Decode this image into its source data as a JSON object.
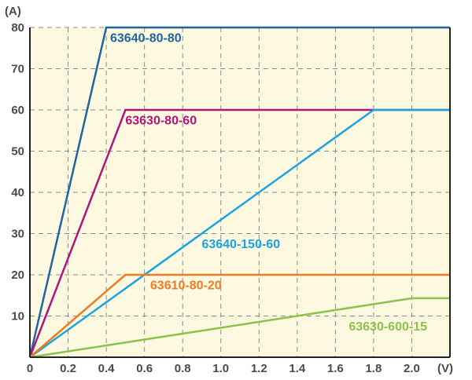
{
  "chart_data": {
    "type": "line",
    "xlabel": "(V)",
    "ylabel": "(A)",
    "xlim": [
      0,
      2.2
    ],
    "ylim": [
      0,
      80
    ],
    "x_ticks": [
      "0",
      "0.2",
      "0.4",
      "0.6",
      "0.8",
      "1.0",
      "1.2",
      "1.4",
      "1.6",
      "1.8",
      "2.0"
    ],
    "x_tick_values": [
      0,
      0.2,
      0.4,
      0.6,
      0.8,
      1.0,
      1.2,
      1.4,
      1.6,
      1.8,
      2.0
    ],
    "y_ticks": [
      "10",
      "20",
      "30",
      "40",
      "50",
      "60",
      "70",
      "80"
    ],
    "y_tick_values": [
      10,
      20,
      30,
      40,
      50,
      60,
      70,
      80
    ],
    "grid": true,
    "background_color": "#fdf9e1",
    "series": [
      {
        "name": "63640-80-80",
        "color": "#1f64a3",
        "label_x": 0.42,
        "label_y": 76.5,
        "points": [
          [
            0,
            0
          ],
          [
            0.4,
            80
          ],
          [
            2.2,
            80
          ]
        ]
      },
      {
        "name": "63630-80-60",
        "color": "#b0157a",
        "label_x": 0.5,
        "label_y": 56.5,
        "points": [
          [
            0,
            0
          ],
          [
            0.5,
            60
          ],
          [
            2.2,
            60
          ]
        ]
      },
      {
        "name": "63640-150-60",
        "color": "#1aa3df",
        "label_x": 0.9,
        "label_y": 26.5,
        "points": [
          [
            0,
            0
          ],
          [
            1.8,
            60
          ],
          [
            2.2,
            60
          ]
        ]
      },
      {
        "name": "63610-80-20",
        "color": "#ee7a23",
        "label_x": 0.63,
        "label_y": 16.5,
        "points": [
          [
            0,
            0
          ],
          [
            0.5,
            20
          ],
          [
            2.2,
            20
          ]
        ]
      },
      {
        "name": "63630-600-15",
        "color": "#8bc34a",
        "label_x": 1.67,
        "label_y": 6.5,
        "points": [
          [
            0,
            0
          ],
          [
            2.0,
            14.3
          ],
          [
            2.2,
            14.3
          ]
        ]
      }
    ]
  }
}
